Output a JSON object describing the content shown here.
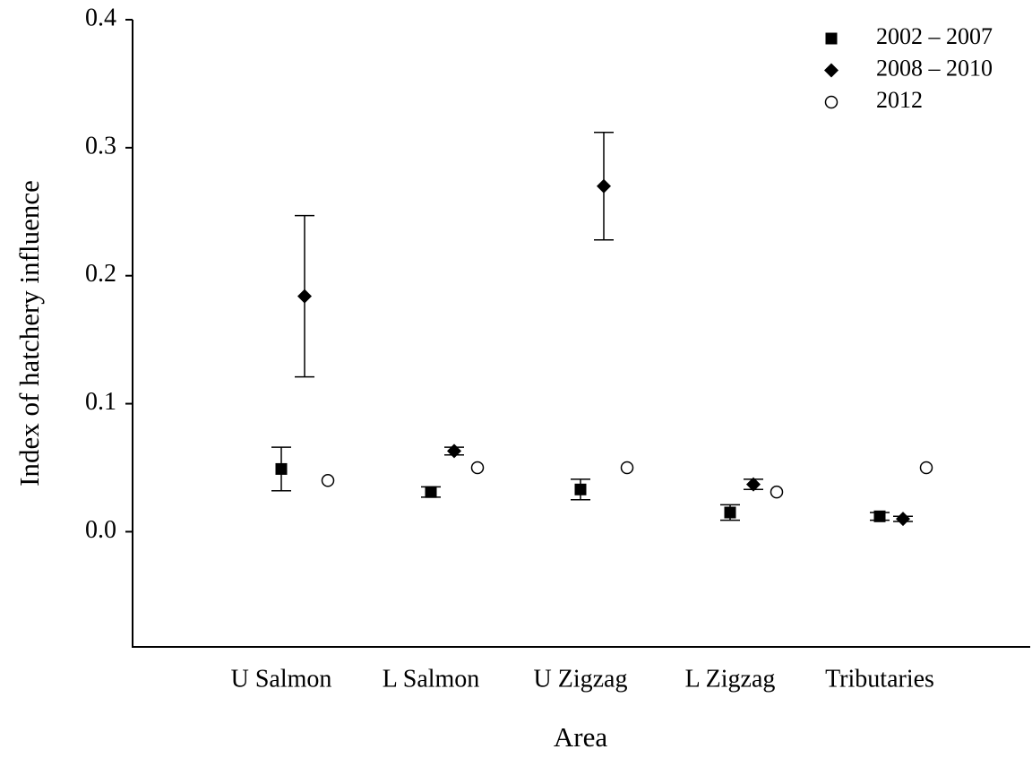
{
  "chart_data": {
    "type": "point",
    "x_label": "Area",
    "y_label": "Index of hatchery influence",
    "categories": [
      "U Salmon",
      "L Salmon",
      "U Zigzag",
      "L Zigzag",
      "Tributaries"
    ],
    "series": [
      {
        "name": "2002 – 2007",
        "marker": "square",
        "color": "#000000",
        "values": [
          0.049,
          0.031,
          0.033,
          0.015,
          0.012
        ],
        "errors": [
          0.017,
          0.004,
          0.008,
          0.006,
          0.003
        ]
      },
      {
        "name": "2008 – 2010",
        "marker": "diamond",
        "color": "#000000",
        "values": [
          0.184,
          0.063,
          0.27,
          0.037,
          0.01
        ],
        "errors": [
          0.063,
          0.003,
          0.042,
          0.004,
          0.002
        ]
      },
      {
        "name": "2012",
        "marker": "circle",
        "color": "#000000",
        "values": [
          0.04,
          0.05,
          0.05,
          0.031,
          0.05
        ]
      }
    ],
    "ylim": [
      -0.09,
      0.4
    ],
    "yticks": [
      {
        "value": 0,
        "label": "0.0"
      },
      0.1,
      0.2,
      0.3,
      0.4
    ],
    "legend": "upper right"
  }
}
